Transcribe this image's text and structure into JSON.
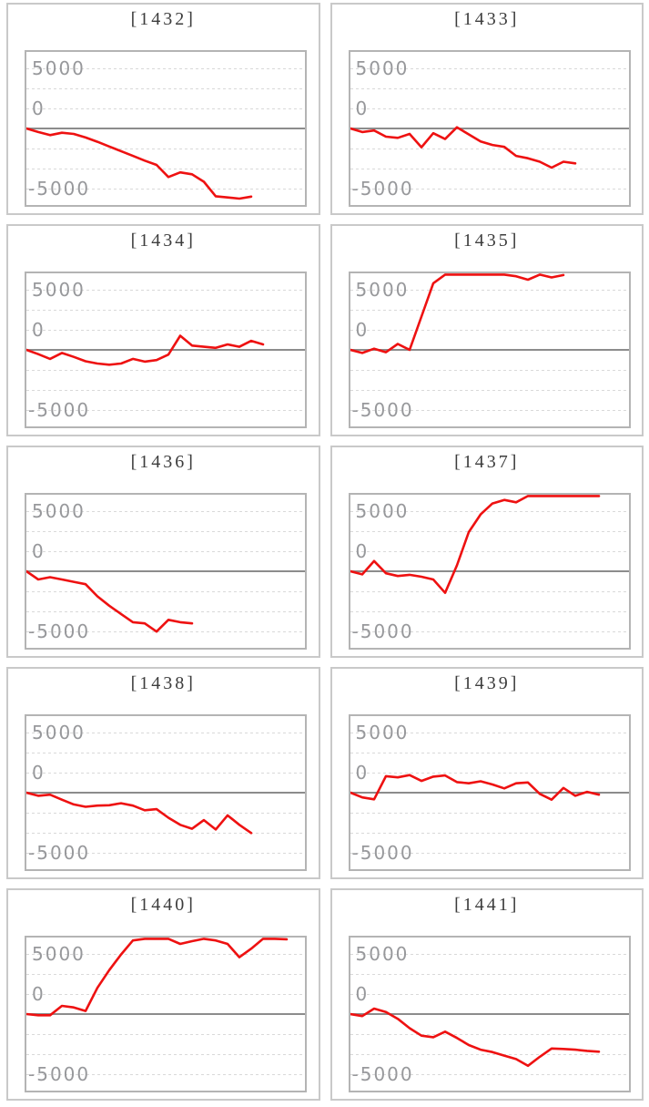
{
  "axis_labels": {
    "top": "5000",
    "zero": "0",
    "bottom": "-5000"
  },
  "colors": {
    "line": "#ee1111",
    "zero_line": "#8c8c8c",
    "grid": "#d9d9d9",
    "plot_border": "#b4b4b4",
    "cell_border": "#c9c9c9",
    "label": "#97989b",
    "title": "#3c3c3c"
  },
  "chart_data": [
    {
      "type": "line",
      "title": "[1432]",
      "ylabels": [
        "5000",
        "0",
        "-5000"
      ],
      "ylim": [
        -10000,
        10000
      ],
      "grid_step": 2500,
      "values": [
        0,
        -450,
        -850,
        -550,
        -700,
        -1150,
        -1700,
        -2300,
        -2900,
        -3500,
        -4100,
        -4650,
        -6200,
        -5600,
        -5850,
        -6800,
        -8650,
        -8800,
        -8950,
        -8700
      ]
    },
    {
      "type": "line",
      "title": "[1433]",
      "ylabels": [
        "5000",
        "0",
        "-5000"
      ],
      "ylim": [
        -10000,
        10000
      ],
      "grid_step": 2500,
      "values": [
        0,
        -450,
        -250,
        -1050,
        -1200,
        -700,
        -2400,
        -600,
        -1350,
        150,
        -750,
        -1650,
        -2100,
        -2350,
        -3500,
        -3800,
        -4250,
        -5000,
        -4250,
        -4450
      ]
    },
    {
      "type": "line",
      "title": "[1434]",
      "ylabels": [
        "5000",
        "0",
        "-5000"
      ],
      "ylim": [
        -10000,
        10000
      ],
      "grid_step": 2500,
      "values": [
        0,
        -550,
        -1150,
        -400,
        -900,
        -1450,
        -1750,
        -1900,
        -1750,
        -1150,
        -1500,
        -1300,
        -600,
        1800,
        550,
        400,
        250,
        700,
        400,
        1150,
        700
      ]
    },
    {
      "type": "line",
      "title": "[1435]",
      "ylabels": [
        "5000",
        "0",
        "-5000"
      ],
      "ylim": [
        -10000,
        10000
      ],
      "grid_step": 2500,
      "values": [
        0,
        -400,
        150,
        -300,
        750,
        0,
        4250,
        8500,
        9800,
        9800,
        9800,
        9800,
        9800,
        9800,
        9400,
        8950,
        9700,
        9250,
        9550
      ]
    },
    {
      "type": "line",
      "title": "[1436]",
      "ylabels": [
        "5000",
        "0",
        "-5000"
      ],
      "ylim": [
        -10000,
        10000
      ],
      "grid_step": 2500,
      "values": [
        0,
        -1050,
        -750,
        -1050,
        -1350,
        -1650,
        -3200,
        -4400,
        -5450,
        -6500,
        -6650,
        -7700,
        -6200,
        -6500,
        -6650
      ]
    },
    {
      "type": "line",
      "title": "[1437]",
      "ylabels": [
        "5000",
        "0",
        "-5000"
      ],
      "ylim": [
        -10000,
        10000
      ],
      "grid_step": 2500,
      "values": [
        0,
        -400,
        1300,
        -250,
        -600,
        -450,
        -700,
        -1050,
        -2750,
        750,
        5000,
        7250,
        8650,
        9100,
        8800,
        9800,
        9800,
        9800,
        9800,
        9800,
        9800,
        9800
      ]
    },
    {
      "type": "line",
      "title": "[1438]",
      "ylabels": [
        "5000",
        "0",
        "-5000"
      ],
      "ylim": [
        -10000,
        10000
      ],
      "grid_step": 2500,
      "values": [
        0,
        -400,
        -250,
        -900,
        -1500,
        -1800,
        -1650,
        -1600,
        -1350,
        -1650,
        -2250,
        -2100,
        -3200,
        -4100,
        -4600,
        -3500,
        -4700,
        -2900,
        -4100,
        -5150
      ]
    },
    {
      "type": "line",
      "title": "[1439]",
      "ylabels": [
        "5000",
        "0",
        "-5000"
      ],
      "ylim": [
        -10000,
        10000
      ],
      "grid_step": 2500,
      "values": [
        0,
        -600,
        -850,
        2100,
        1950,
        2250,
        1500,
        2050,
        2200,
        1350,
        1200,
        1450,
        1050,
        550,
        1200,
        1300,
        -150,
        -900,
        600,
        -400,
        100,
        -250
      ]
    },
    {
      "type": "line",
      "title": "[1440]",
      "ylabels": [
        "5000",
        "0",
        "-5000"
      ],
      "ylim": [
        -10000,
        10000
      ],
      "grid_step": 2500,
      "values": [
        0,
        -150,
        -150,
        1050,
        850,
        400,
        3350,
        5600,
        7600,
        9400,
        9800,
        9800,
        9800,
        8950,
        9300,
        9750,
        9400,
        8950,
        7250,
        8350,
        9700,
        9800,
        9550
      ]
    },
    {
      "type": "line",
      "title": "[1441]",
      "ylabels": [
        "5000",
        "0",
        "-5000"
      ],
      "ylim": [
        -10000,
        10000
      ],
      "grid_step": 2500,
      "values": [
        0,
        -250,
        700,
        250,
        -600,
        -1800,
        -2750,
        -2950,
        -2250,
        -3050,
        -3950,
        -4550,
        -4850,
        -5300,
        -5750,
        -6600,
        -5450,
        -4400,
        -4450,
        -4550,
        -4700,
        -4800
      ]
    }
  ]
}
